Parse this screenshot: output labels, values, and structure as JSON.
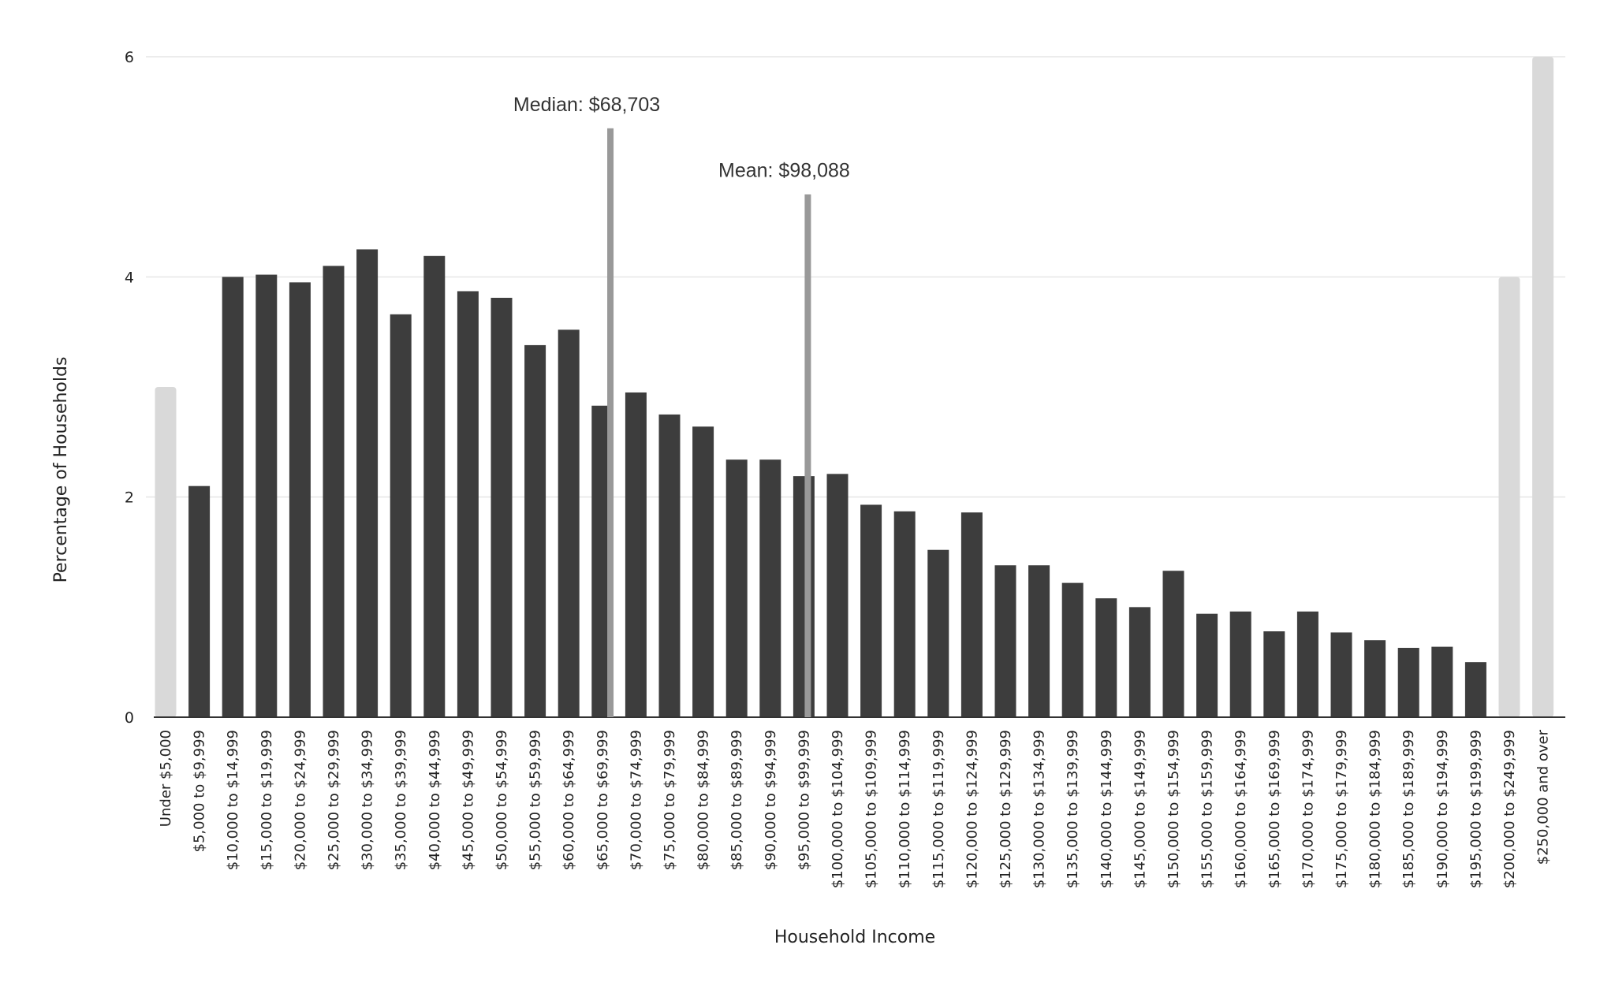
{
  "chart_data": {
    "type": "bar",
    "title": "",
    "xlabel": "Household Income",
    "ylabel": "Percentage of Households",
    "ylim": [
      0,
      6
    ],
    "yticks": [
      0,
      2,
      4,
      6
    ],
    "grid": true,
    "colors": {
      "bar": "#3d3d3d",
      "highlight_bar": "#d9d9d9",
      "annotation_line": "#999999",
      "gridline": "#e6e6e6",
      "axis": "#333333"
    },
    "categories": [
      "Under $5,000",
      "$5,000 to $9,999",
      "$10,000 to $14,999",
      "$15,000 to $19,999",
      "$20,000 to $24,999",
      "$25,000 to $29,999",
      "$30,000 to $34,999",
      "$35,000 to $39,999",
      "$40,000 to $44,999",
      "$45,000 to $49,999",
      "$50,000 to $54,999",
      "$55,000 to $59,999",
      "$60,000 to $64,999",
      "$65,000 to $69,999",
      "$70,000 to $74,999",
      "$75,000 to $79,999",
      "$80,000 to $84,999",
      "$85,000 to $89,999",
      "$90,000 to $94,999",
      "$95,000 to $99,999",
      "$100,000 to $104,999",
      "$105,000 to $109,999",
      "$110,000 to $114,999",
      "$115,000 to $119,999",
      "$120,000 to $124,999",
      "$125,000 to $129,999",
      "$130,000 to $134,999",
      "$135,000 to $139,999",
      "$140,000 to $144,999",
      "$145,000 to $149,999",
      "$150,000 to $154,999",
      "$155,000 to $159,999",
      "$160,000 to $164,999",
      "$165,000 to $169,999",
      "$170,000 to $174,999",
      "$175,000 to $179,999",
      "$180,000 to $184,999",
      "$185,000 to $189,999",
      "$190,000 to $194,999",
      "$195,000 to $199,999",
      "$200,000 to $249,999",
      "$250,000 and over"
    ],
    "values": [
      3.0,
      2.1,
      4.0,
      4.02,
      3.95,
      4.1,
      4.25,
      3.66,
      4.19,
      3.87,
      3.81,
      3.38,
      3.52,
      2.83,
      2.95,
      2.75,
      2.64,
      2.34,
      2.34,
      2.19,
      2.21,
      1.93,
      1.87,
      1.52,
      1.86,
      1.38,
      1.38,
      1.22,
      1.08,
      1.0,
      1.33,
      0.94,
      0.96,
      0.78,
      0.96,
      0.77,
      0.7,
      0.63,
      0.64,
      0.5,
      4.0,
      6.0
    ],
    "highlighted_categories": [
      "Under $5,000",
      "$200,000 to $249,999",
      "$250,000 and over"
    ],
    "annotations": [
      {
        "label": "Median: $68,703",
        "x": 68703,
        "marker_top": 5.35
      },
      {
        "label": "Mean: $98,088",
        "x": 98088,
        "marker_top": 4.75
      }
    ]
  }
}
